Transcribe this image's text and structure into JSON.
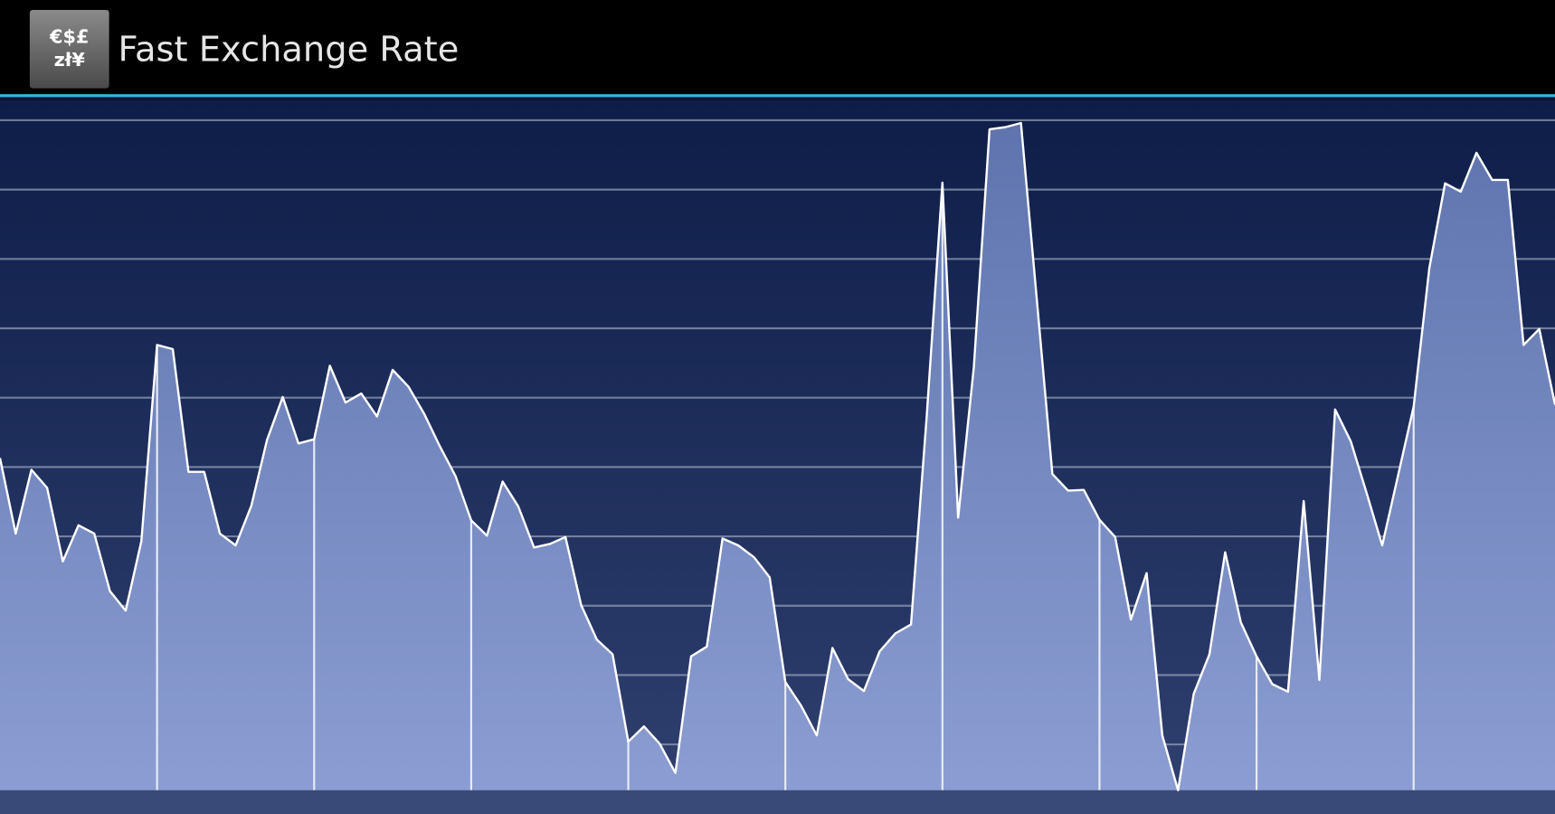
{
  "app_bar": {
    "icon_text": [
      "€$£",
      "zł¥"
    ],
    "title": "Fast Exchange Rate"
  },
  "chart_data": {
    "type": "area",
    "x": [
      0,
      1,
      2,
      3,
      4,
      5,
      6,
      7,
      8,
      9,
      10,
      11,
      12,
      13,
      14,
      15,
      16,
      17,
      18,
      19,
      20,
      21,
      22,
      23,
      24,
      25,
      26,
      27,
      28,
      29,
      30,
      31,
      32,
      33,
      34,
      35,
      36,
      37,
      38,
      39,
      40,
      41,
      42,
      43,
      44,
      45,
      46,
      47,
      48,
      49,
      50,
      51,
      52,
      53,
      54,
      55,
      56,
      57,
      58,
      59,
      60,
      61,
      62,
      63,
      64,
      65,
      66,
      67,
      68,
      69,
      70,
      71,
      72,
      73,
      74,
      75,
      76,
      77,
      78,
      79,
      80,
      81,
      82,
      83,
      84,
      85,
      86,
      87,
      88,
      89,
      90,
      91,
      92,
      93,
      94,
      95,
      96,
      97,
      98,
      99
    ],
    "values": [
      5.13,
      4.04,
      4.96,
      4.7,
      3.64,
      4.16,
      4.04,
      3.21,
      2.93,
      3.93,
      6.76,
      6.7,
      4.93,
      4.93,
      4.04,
      3.87,
      4.44,
      5.39,
      6.01,
      5.34,
      5.4,
      6.46,
      5.93,
      6.06,
      5.73,
      6.4,
      6.16,
      5.77,
      5.3,
      4.87,
      4.23,
      4.01,
      4.79,
      4.43,
      3.84,
      3.89,
      3.99,
      3.01,
      2.51,
      2.3,
      1.04,
      1.26,
      1.01,
      0.59,
      2.27,
      2.41,
      3.97,
      3.87,
      3.7,
      3.41,
      1.9,
      1.56,
      1.13,
      2.39,
      1.94,
      1.77,
      2.34,
      2.6,
      2.73,
      5.73,
      9.1,
      4.27,
      6.44,
      9.87,
      9.9,
      9.96,
      7.44,
      4.9,
      4.66,
      4.67,
      4.24,
      3.99,
      2.8,
      3.47,
      1.13,
      0.34,
      1.73,
      2.3,
      3.77,
      2.76,
      2.27,
      1.87,
      1.76,
      4.51,
      1.93,
      5.83,
      5.37,
      4.63,
      3.87,
      4.87,
      5.87,
      7.87,
      9.09,
      8.97,
      9.53,
      9.14,
      9.14,
      6.76,
      6.99,
      5.9
    ],
    "color": "#ffffff",
    "xlim": [
      0,
      99
    ],
    "xticks": [
      10,
      20,
      30,
      40,
      50,
      60,
      70,
      80,
      90
    ],
    "ylim": [
      0.34,
      10.29
    ],
    "yticks": [
      1,
      2,
      3,
      4,
      5,
      6,
      7,
      8,
      9,
      10
    ],
    "grid": true
  }
}
